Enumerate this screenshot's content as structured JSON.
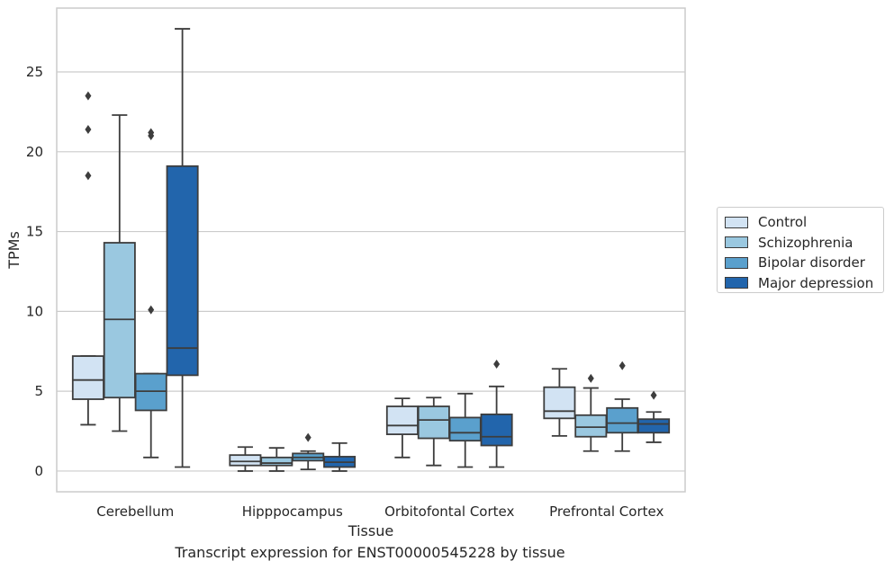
{
  "chart_data": {
    "type": "box",
    "title": "Transcript expression for ENST00000545228 by tissue",
    "xlabel": "Tissue",
    "ylabel": "TPMs",
    "ylim": [
      -1.3,
      29
    ],
    "yticks": [
      0,
      5,
      10,
      15,
      20,
      25
    ],
    "grid": "horizontal",
    "legend_position": "right",
    "categories": [
      "Cerebellum",
      "Hipppocampus",
      "Orbitofontal Cortex",
      "Prefrontal Cortex"
    ],
    "series": [
      {
        "name": "Control",
        "color": "#d2e3f3",
        "boxes": [
          {
            "whislo": 2.9,
            "q1": 4.5,
            "med": 5.7,
            "q3": 7.2,
            "whishi": 7.2,
            "fliers": [
              18.5,
              21.4,
              23.5
            ]
          },
          {
            "whislo": 0.0,
            "q1": 0.35,
            "med": 0.6,
            "q3": 1.0,
            "whishi": 1.5,
            "fliers": []
          },
          {
            "whislo": 0.85,
            "q1": 2.3,
            "med": 2.85,
            "q3": 4.05,
            "whishi": 4.55,
            "fliers": []
          },
          {
            "whislo": 2.2,
            "q1": 3.3,
            "med": 3.75,
            "q3": 5.25,
            "whishi": 6.4,
            "fliers": []
          }
        ]
      },
      {
        "name": "Schizophrenia",
        "color": "#9ac8e0",
        "boxes": [
          {
            "whislo": 2.5,
            "q1": 4.6,
            "med": 9.5,
            "q3": 14.3,
            "whishi": 22.3,
            "fliers": []
          },
          {
            "whislo": 0.0,
            "q1": 0.35,
            "med": 0.5,
            "q3": 0.85,
            "whishi": 1.45,
            "fliers": []
          },
          {
            "whislo": 0.35,
            "q1": 2.05,
            "med": 3.2,
            "q3": 4.05,
            "whishi": 4.6,
            "fliers": []
          },
          {
            "whislo": 1.25,
            "q1": 2.15,
            "med": 2.75,
            "q3": 3.5,
            "whishi": 5.2,
            "fliers": [
              5.8
            ]
          }
        ]
      },
      {
        "name": "Bipolar disorder",
        "color": "#5aa0cd",
        "boxes": [
          {
            "whislo": 0.85,
            "q1": 3.8,
            "med": 5.0,
            "q3": 6.1,
            "whishi": 6.1,
            "fliers": [
              10.1,
              21.0,
              21.2
            ]
          },
          {
            "whislo": 0.1,
            "q1": 0.65,
            "med": 0.85,
            "q3": 1.1,
            "whishi": 1.25,
            "fliers": [
              2.1
            ]
          },
          {
            "whislo": 0.25,
            "q1": 1.9,
            "med": 2.4,
            "q3": 3.35,
            "whishi": 4.85,
            "fliers": []
          },
          {
            "whislo": 1.25,
            "q1": 2.4,
            "med": 3.0,
            "q3": 3.95,
            "whishi": 4.5,
            "fliers": [
              6.6
            ]
          }
        ]
      },
      {
        "name": "Major depression",
        "color": "#2265ac",
        "boxes": [
          {
            "whislo": 0.25,
            "q1": 6.0,
            "med": 7.7,
            "q3": 19.1,
            "whishi": 27.7,
            "fliers": []
          },
          {
            "whislo": 0.0,
            "q1": 0.25,
            "med": 0.55,
            "q3": 0.9,
            "whishi": 1.75,
            "fliers": []
          },
          {
            "whislo": 0.25,
            "q1": 1.6,
            "med": 2.15,
            "q3": 3.55,
            "whishi": 5.3,
            "fliers": [
              6.7
            ]
          },
          {
            "whislo": 1.8,
            "q1": 2.4,
            "med": 2.95,
            "q3": 3.25,
            "whishi": 3.7,
            "fliers": [
              4.75
            ]
          }
        ]
      }
    ]
  }
}
